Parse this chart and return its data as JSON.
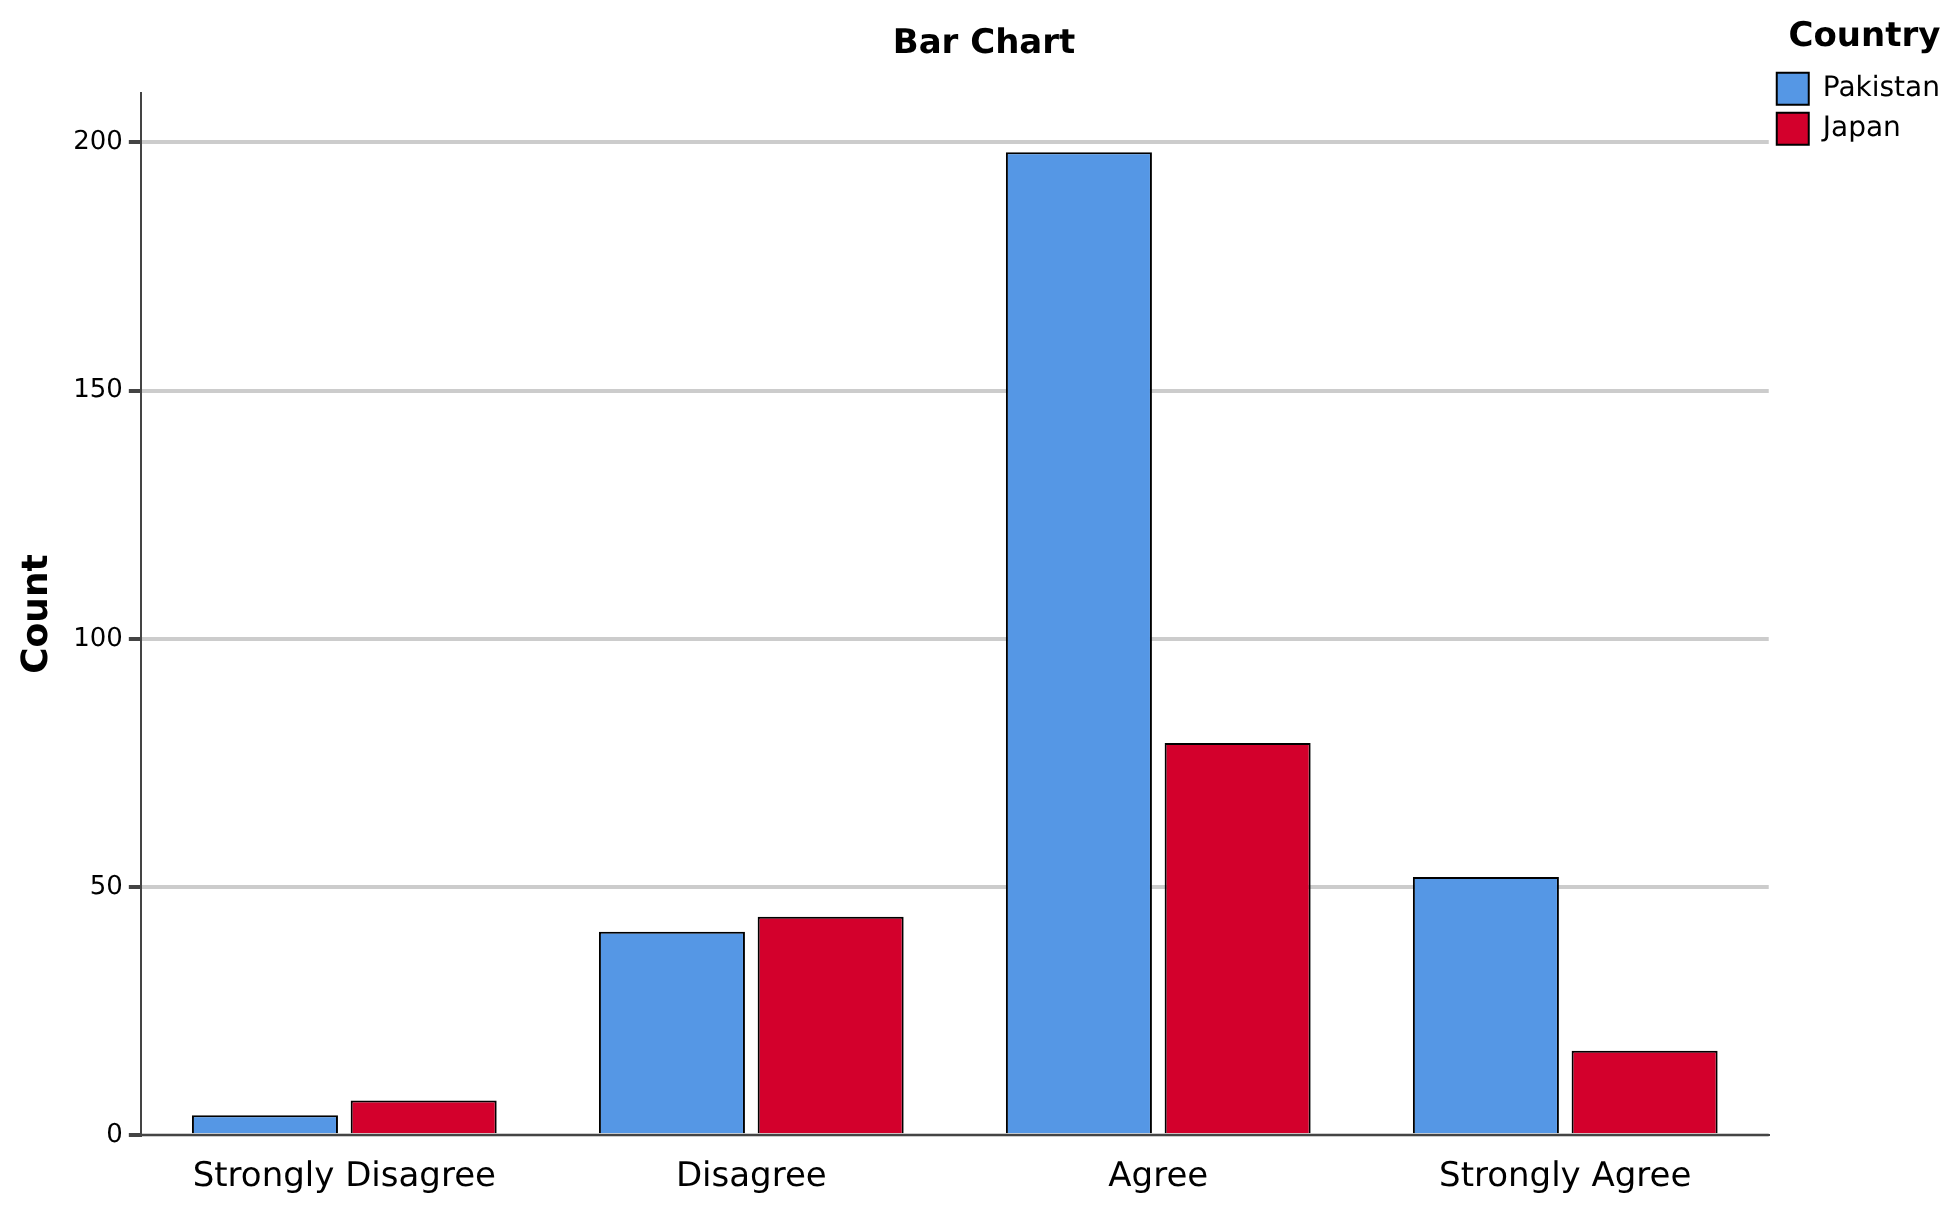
{
  "chart_data": {
    "type": "bar",
    "title": "Bar Chart",
    "ylabel": "Count",
    "legend_title": "Country",
    "categories": [
      "Strongly Disagree",
      "Disagree",
      "Agree",
      "Strongly Agree"
    ],
    "series": [
      {
        "name": "Pakistan",
        "color": "#5597e5",
        "values": [
          4,
          41,
          198,
          52
        ]
      },
      {
        "name": "Japan",
        "color": "#d3002c",
        "values": [
          7,
          44,
          79,
          17
        ]
      }
    ],
    "ylim": [
      0,
      210
    ],
    "yticks": [
      0,
      50,
      100,
      150,
      200
    ],
    "grid": "y",
    "legend": "top right"
  }
}
